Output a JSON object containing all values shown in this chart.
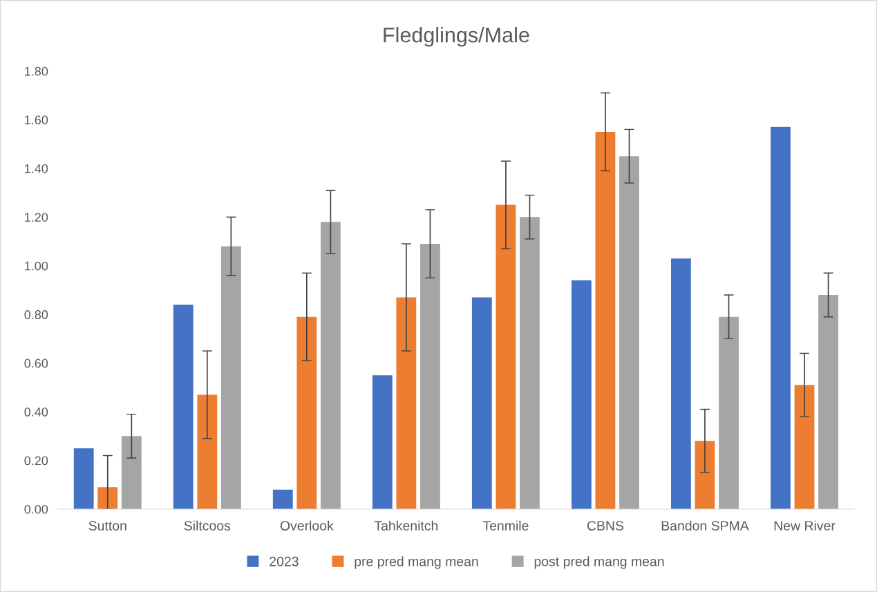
{
  "chart_data": {
    "type": "bar",
    "title": "Fledglings/Male",
    "categories": [
      "Sutton",
      "Siltcoos",
      "Overlook",
      "Tahkenitch",
      "Tenmile",
      "CBNS",
      "Bandon SPMA",
      "New River"
    ],
    "series": [
      {
        "name": "2023",
        "color": "#4472c4",
        "values": [
          0.25,
          0.84,
          0.08,
          0.55,
          0.87,
          0.94,
          1.03,
          1.57
        ]
      },
      {
        "name": "pre pred mang mean",
        "color": "#ed7d31",
        "values": [
          0.09,
          0.47,
          0.79,
          0.87,
          1.25,
          1.55,
          0.28,
          0.51
        ],
        "errors": [
          [
            0.0,
            0.22
          ],
          0.18,
          0.18,
          0.22,
          0.18,
          0.16,
          0.13,
          0.13
        ]
      },
      {
        "name": "post pred mang mean",
        "color": "#a5a5a5",
        "values": [
          0.3,
          1.08,
          1.18,
          1.09,
          1.2,
          1.45,
          0.79,
          0.88
        ],
        "errors": [
          0.09,
          0.12,
          0.13,
          0.14,
          0.09,
          0.11,
          0.09,
          0.09
        ]
      }
    ],
    "ylim": [
      0,
      1.8
    ],
    "yticks": [
      {
        "value": 0,
        "label": "0.00"
      },
      {
        "value": 0.2,
        "label": "0.20"
      },
      {
        "value": 0.4,
        "label": "0.40"
      },
      {
        "value": 0.6,
        "label": "0.60"
      },
      {
        "value": 0.8,
        "label": "0.80"
      },
      {
        "value": 1.0,
        "label": "1.00"
      },
      {
        "value": 1.2,
        "label": "1.20"
      },
      {
        "value": 1.4,
        "label": "1.40"
      },
      {
        "value": 1.6,
        "label": "1.60"
      },
      {
        "value": 1.8,
        "label": "1.80"
      }
    ],
    "grid": false,
    "legend": "bottom"
  }
}
